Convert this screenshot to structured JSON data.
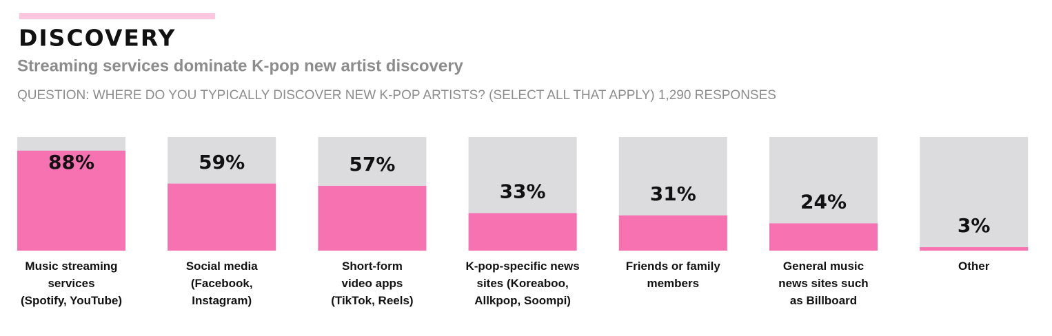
{
  "chart_data": {
    "type": "bar",
    "title": "DISCOVERY",
    "subtitle": "Streaming services dominate K-pop new artist discovery",
    "question": "QUESTION: WHERE DO YOU TYPICALLY DISCOVER NEW K-POP ARTISTS? (SELECT ALL THAT APPLY) 1,290 RESPONSES",
    "categories": [
      "Music streaming\nservices\n(Spotify, YouTube)",
      "Social media\n(Facebook,\nInstagram)",
      "Short-form\nvideo apps\n(TikTok, Reels)",
      "K-pop-specific news\nsites (Koreaboo,\nAllkpop, Soompi)",
      "Friends or family\nmembers",
      "General music\nnews sites such\nas Billboard",
      "Other"
    ],
    "values": [
      88,
      59,
      57,
      33,
      31,
      24,
      3
    ],
    "value_labels": [
      "88%",
      "59%",
      "57%",
      "33%",
      "31%",
      "24%",
      "3%"
    ],
    "ylim": [
      0,
      100
    ],
    "color": "#f772b1",
    "background_color": "#dcdcde"
  }
}
